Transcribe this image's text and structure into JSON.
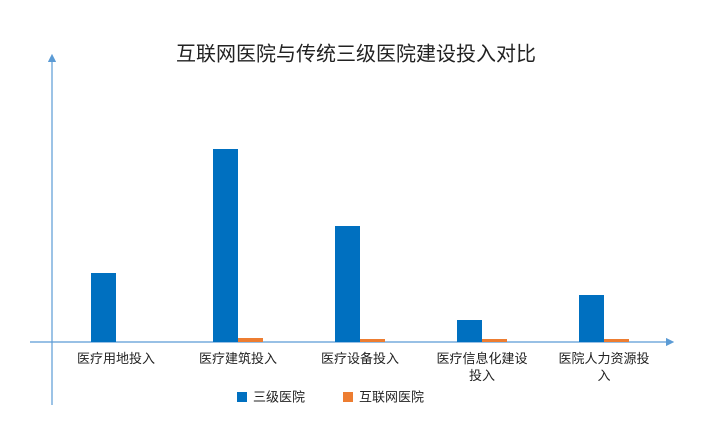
{
  "chart_data": {
    "type": "bar",
    "title": "互联网医院与传统三级医院建设投入对比",
    "categories": [
      "医疗用地投入",
      "医疗建筑投入",
      "医疗设备投入",
      "医疗信息化建设投入",
      "医院人力资源投入"
    ],
    "series": [
      {
        "name": "三级医院",
        "color": "#0070c0",
        "values": [
          69,
          193,
          116,
          22,
          47
        ]
      },
      {
        "name": "互联网医院",
        "color": "#ed7d31",
        "values": [
          0,
          4,
          3,
          3,
          3
        ]
      }
    ],
    "ylim": [
      0,
      280
    ],
    "legend": "bottom"
  }
}
